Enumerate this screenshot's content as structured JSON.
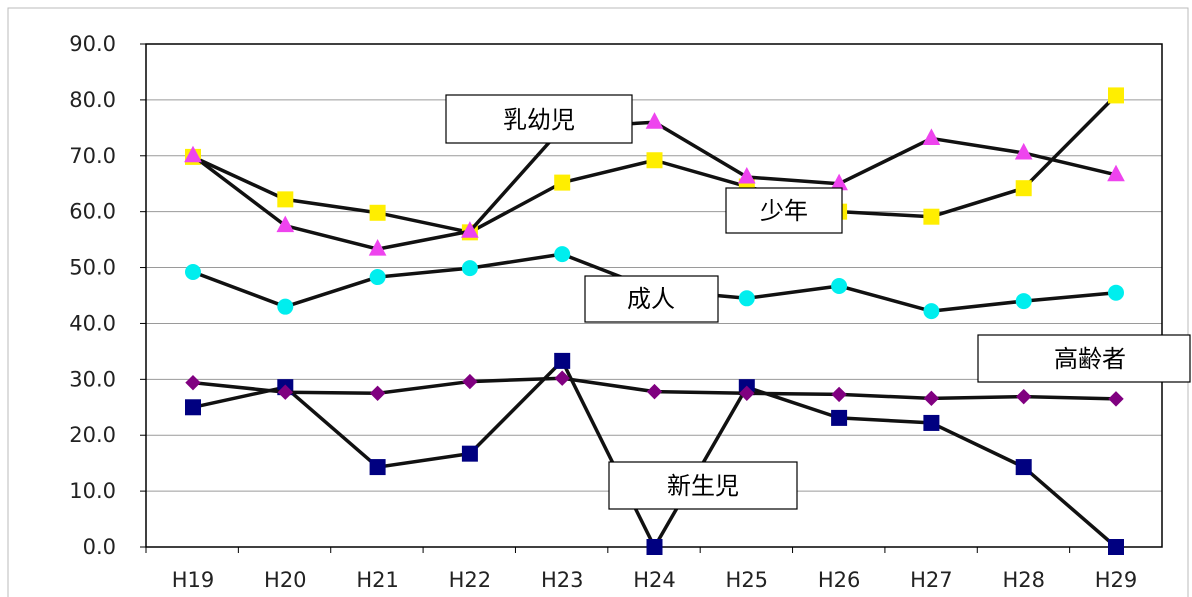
{
  "chart_data": {
    "type": "line",
    "categories": [
      "H19",
      "H20",
      "H21",
      "H22",
      "H23",
      "H24",
      "H25",
      "H26",
      "H27",
      "H28",
      "H29"
    ],
    "ylim": [
      0,
      90
    ],
    "yticks": [
      "0.0",
      "10.0",
      "20.0",
      "30.0",
      "40.0",
      "50.0",
      "60.0",
      "70.0",
      "80.0",
      "90.0"
    ],
    "grid": true,
    "series": [
      {
        "name": "乳幼児",
        "marker": "triangle",
        "color": "#ee44ee",
        "values": [
          70.0,
          57.5,
          53.3,
          56.5,
          75.0,
          76.0,
          66.2,
          65.0,
          73.1,
          70.5,
          66.6
        ]
      },
      {
        "name": "少年",
        "marker": "square",
        "color": "#ffee00",
        "values": [
          69.8,
          62.2,
          59.8,
          56.3,
          65.2,
          69.2,
          64.5,
          60.0,
          59.1,
          64.2,
          80.8
        ]
      },
      {
        "name": "成人",
        "marker": "circle",
        "color": "#00eeee",
        "values": [
          49.2,
          43.0,
          48.3,
          49.9,
          52.4,
          46.0,
          44.5,
          46.7,
          42.2,
          44.0,
          45.5
        ]
      },
      {
        "name": "高齢者",
        "marker": "diamond",
        "color": "#800080",
        "values": [
          29.4,
          27.7,
          27.5,
          29.6,
          30.2,
          27.8,
          27.5,
          27.3,
          26.6,
          26.9,
          26.5
        ]
      },
      {
        "name": "新生児",
        "marker": "square",
        "color": "#000080",
        "values": [
          25.0,
          28.6,
          14.3,
          16.7,
          33.3,
          0.0,
          28.6,
          23.1,
          22.2,
          14.3,
          0.0
        ]
      }
    ],
    "labels": [
      "乳幼児",
      "少年",
      "成人",
      "高齢者",
      "新生児"
    ]
  }
}
